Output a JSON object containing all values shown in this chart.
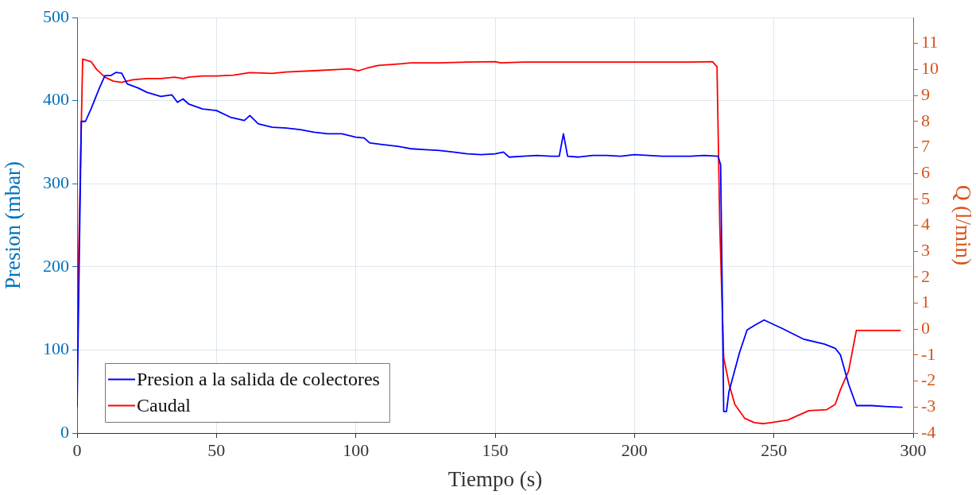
{
  "chart_data": {
    "type": "line",
    "xlabel": "Tiempo (s)",
    "ylabel": "Presion (mbar)",
    "y2label": "Q (l/min)",
    "xlim": [
      0,
      300
    ],
    "xticks": [
      0,
      50,
      100,
      150,
      200,
      250,
      300
    ],
    "ylim": [
      0,
      500
    ],
    "yticks": [
      0,
      100,
      200,
      300,
      400,
      500
    ],
    "y2lim": [
      -4,
      12
    ],
    "y2ticks": [
      -4,
      -3,
      -2,
      -1,
      0,
      1,
      2,
      3,
      4,
      5,
      6,
      7,
      8,
      9,
      10,
      11
    ],
    "grid": true,
    "legend": "bottom left",
    "line_style": "solid",
    "marker": "none",
    "series": [
      {
        "name": "Presion a la salida de colectores",
        "color": "#0000ff",
        "x": [
          0,
          1.5,
          3,
          5,
          8,
          10,
          12,
          14,
          16,
          18,
          22,
          25,
          30,
          34,
          36,
          38,
          40,
          45,
          50,
          55,
          60,
          62,
          65,
          70,
          75,
          80,
          85,
          90,
          95,
          100,
          103,
          105,
          110,
          115,
          120,
          125,
          130,
          135,
          140,
          145,
          150,
          153,
          155,
          160,
          165,
          170,
          173,
          174.5,
          176,
          180,
          185,
          190,
          195,
          200,
          210,
          220,
          225,
          230,
          230.9,
          232,
          233,
          233.9,
          237.7,
          240.4,
          243.3,
          246.5,
          252.9,
          260.6,
          268.2,
          272,
          273.9,
          276.8,
          279.6,
          285,
          290,
          296
        ],
        "values": [
          32,
          375,
          375,
          390,
          415,
          430,
          430,
          434,
          433,
          420,
          415,
          410,
          405,
          407,
          398,
          402,
          396,
          390,
          388,
          380,
          376,
          382,
          372,
          368,
          367,
          365,
          362,
          360,
          360,
          356,
          355,
          349,
          347,
          345,
          342,
          341,
          340,
          338,
          336,
          335,
          336,
          338,
          332,
          333,
          334,
          333,
          333,
          360,
          333,
          332,
          334,
          334,
          333,
          335,
          333,
          333,
          334,
          333,
          323,
          26,
          26,
          50,
          97,
          124,
          130,
          136,
          126,
          113,
          107,
          102,
          94,
          59,
          33,
          33,
          32,
          31
        ]
      },
      {
        "name": "Caudal",
        "color": "#ff0000",
        "axis": "y2",
        "x": [
          0,
          2,
          5,
          7,
          10,
          13,
          16,
          20,
          25,
          30,
          35,
          38,
          40,
          45,
          50,
          56,
          62,
          70,
          75,
          85,
          94,
          98,
          101,
          104,
          108,
          114,
          120,
          130,
          140,
          150,
          152,
          160,
          170,
          180,
          200,
          220,
          228,
          229.6,
          230.6,
          232,
          233.9,
          236,
          239.6,
          243,
          246.3,
          249,
          255,
          262.5,
          269,
          272,
          273.9,
          276.8,
          279.6,
          295.3
        ],
        "values": [
          0,
          10.4,
          10.3,
          10.0,
          9.7,
          9.55,
          9.5,
          9.6,
          9.65,
          9.65,
          9.7,
          9.65,
          9.7,
          9.75,
          9.75,
          9.78,
          9.88,
          9.85,
          9.9,
          9.95,
          10.0,
          10.02,
          9.95,
          10.05,
          10.15,
          10.2,
          10.25,
          10.25,
          10.28,
          10.3,
          10.25,
          10.28,
          10.28,
          10.28,
          10.28,
          10.28,
          10.3,
          10.1,
          3.96,
          -1.1,
          -2.1,
          -2.9,
          -3.44,
          -3.6,
          -3.64,
          -3.6,
          -3.5,
          -3.14,
          -3.1,
          -2.9,
          -2.33,
          -1.62,
          -0.05,
          -0.05
        ]
      }
    ]
  }
}
